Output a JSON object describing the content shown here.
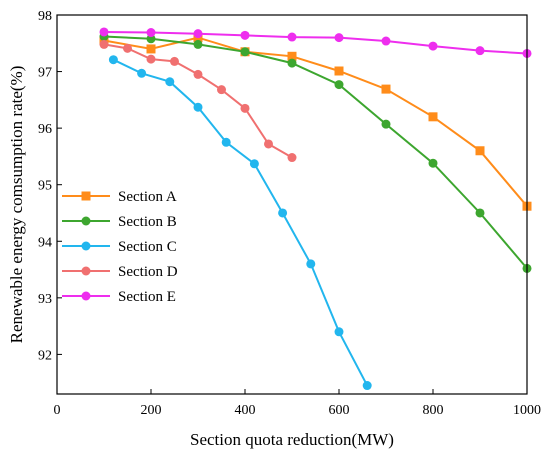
{
  "chart_data": {
    "type": "line",
    "title": "",
    "xlabel": "Section quota reduction(MW)",
    "ylabel": "Renewable energy comsumption rate(%)",
    "xlim": [
      0,
      1000
    ],
    "ylim": [
      91.3,
      98
    ],
    "xticks": [
      0,
      200,
      400,
      600,
      800,
      1000
    ],
    "yticks": [
      92,
      93,
      94,
      95,
      96,
      97,
      98
    ],
    "grid": false,
    "legend_position": "bottom-left",
    "series": [
      {
        "name": "Section A",
        "color": "#FF8C1A",
        "marker": "square",
        "x": [
          100,
          200,
          300,
          400,
          500,
          600,
          700,
          800,
          900,
          1000
        ],
        "y": [
          97.55,
          97.4,
          97.6,
          97.35,
          97.27,
          97.01,
          96.69,
          96.2,
          95.6,
          94.62
        ]
      },
      {
        "name": "Section B",
        "color": "#3DA62F",
        "marker": "circle",
        "x": [
          100,
          200,
          300,
          400,
          500,
          600,
          700,
          800,
          900,
          1000
        ],
        "y": [
          97.62,
          97.58,
          97.48,
          97.35,
          97.15,
          96.77,
          96.07,
          95.38,
          94.5,
          93.52
        ]
      },
      {
        "name": "Section C",
        "color": "#22B6EE",
        "marker": "circle",
        "x": [
          120,
          180,
          240,
          300,
          360,
          420,
          480,
          540,
          600,
          660
        ],
        "y": [
          97.21,
          96.97,
          96.82,
          96.37,
          95.75,
          95.37,
          94.5,
          93.6,
          92.4,
          91.45
        ]
      },
      {
        "name": "Section D",
        "color": "#F07070",
        "marker": "circle",
        "x": [
          100,
          150,
          200,
          250,
          300,
          350,
          400,
          450,
          500
        ],
        "y": [
          97.48,
          97.41,
          97.22,
          97.18,
          96.95,
          96.68,
          96.35,
          95.72,
          95.48
        ]
      },
      {
        "name": "Section E",
        "color": "#EE2EEE",
        "marker": "circle",
        "x": [
          100,
          200,
          300,
          400,
          500,
          600,
          700,
          800,
          900,
          1000
        ],
        "y": [
          97.7,
          97.69,
          97.67,
          97.64,
          97.61,
          97.6,
          97.54,
          97.45,
          97.37,
          97.32
        ]
      }
    ]
  }
}
